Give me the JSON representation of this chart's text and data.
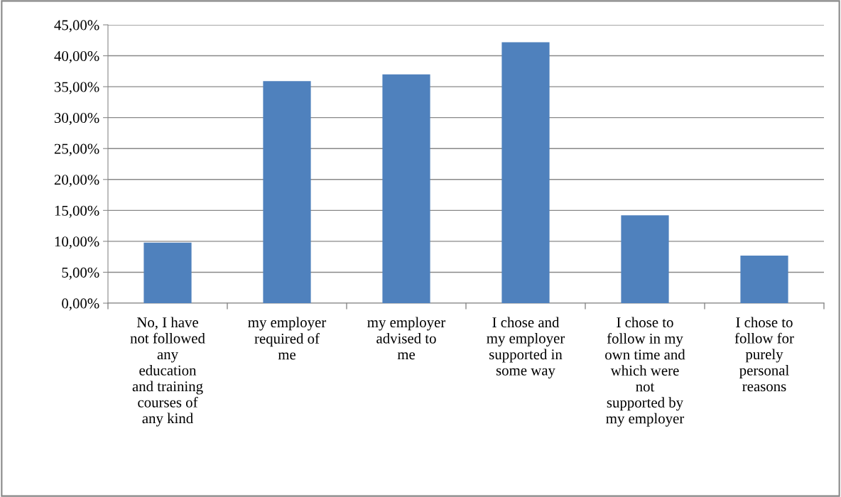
{
  "chart_data": {
    "type": "bar",
    "categories": [
      "No, I have\nnot followed\nany\neducation\nand training\ncourses of\nany kind",
      "my employer\nrequired of\nme",
      "my employer\nadvised to\nme",
      "I chose and\nmy employer\nsupported in\nsome way",
      "I chose to\nfollow in my\nown time and\nwhich were\nnot\nsupported by\nmy employer",
      "I chose to\nfollow for\npurely\npersonal\nreasons"
    ],
    "values": [
      9.8,
      35.9,
      37.0,
      42.2,
      14.2,
      7.7
    ],
    "color": "#4f81bd",
    "ylim": [
      0,
      45
    ],
    "yticks": [
      {
        "value": 0,
        "label": "0,00%"
      },
      {
        "value": 5,
        "label": "5,00%"
      },
      {
        "value": 10,
        "label": "10,00%"
      },
      {
        "value": 15,
        "label": "15,00%"
      },
      {
        "value": 20,
        "label": "20,00%"
      },
      {
        "value": 25,
        "label": "25,00%"
      },
      {
        "value": 30,
        "label": "30,00%"
      },
      {
        "value": 35,
        "label": "35,00%"
      },
      {
        "value": 40,
        "label": "40,00%"
      },
      {
        "value": 45,
        "label": "45,00%"
      }
    ],
    "grid": "y",
    "legend": false
  }
}
